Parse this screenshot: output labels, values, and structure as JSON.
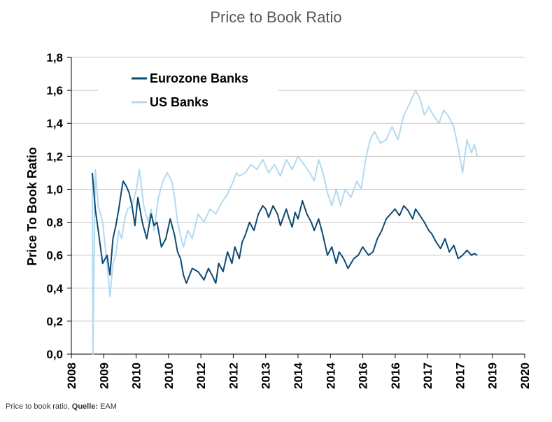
{
  "title": "Price to Book Ratio",
  "caption": {
    "text": "Price to book ratio, ",
    "source_label": "Quelle:",
    "source": " EAM"
  },
  "colors": {
    "eurozone": "#0d4a73",
    "us": "#b3daf0",
    "grid": "#c8c8c8"
  },
  "chart_data": {
    "type": "line",
    "title": "Price to Book Ratio",
    "xlabel": "",
    "ylabel": "Price To Book Ratio",
    "ylim": [
      0,
      1.8
    ],
    "yticks": [
      "0,0",
      "0,2",
      "0,4",
      "0,6",
      "0,8",
      "1,0",
      "1,2",
      "1,4",
      "1,6",
      "1,8"
    ],
    "xticks": [
      "2008",
      "2009",
      "2010",
      "2010",
      "2012",
      "2012",
      "2013",
      "2014",
      "2014",
      "2016",
      "2016",
      "2017",
      "2017",
      "2019",
      "2020"
    ],
    "grid": "horizontal",
    "legend": "top-left",
    "series": [
      {
        "name": "Eurozone Banks",
        "color": "#0d4a73",
        "x": [
          0.0,
          0.1,
          0.2,
          0.35,
          0.5,
          0.6,
          0.7,
          0.8,
          0.9,
          1.0,
          1.05,
          1.15,
          1.25,
          1.35,
          1.45,
          1.55,
          1.7,
          1.85,
          2.0,
          2.1,
          2.2,
          2.35,
          2.5,
          2.65,
          2.8,
          2.9,
          3.0,
          3.1,
          3.2,
          3.4,
          3.6,
          3.8,
          3.95,
          4.1,
          4.2,
          4.3,
          4.45,
          4.6,
          4.75,
          4.85,
          5.0,
          5.1,
          5.2,
          5.35,
          5.5,
          5.65,
          5.8,
          5.9,
          6.0,
          6.15,
          6.3,
          6.4,
          6.5,
          6.6,
          6.7,
          6.8,
          6.9,
          7.0,
          7.15,
          7.3,
          7.45,
          7.55,
          7.7,
          7.85,
          8.0,
          8.15,
          8.3,
          8.4,
          8.55,
          8.7,
          8.9,
          9.05,
          9.2,
          9.4,
          9.55,
          9.7,
          9.85,
          10.0,
          10.15,
          10.3,
          10.45,
          10.6,
          10.75,
          10.9,
          11.0,
          11.15,
          11.3,
          11.45,
          11.55,
          11.7,
          11.85,
          12.0,
          12.15,
          12.3,
          12.45,
          12.6,
          12.75,
          12.9,
          13.0,
          13.1
        ],
        "y": [
          1.1,
          0.88,
          0.75,
          0.55,
          0.6,
          0.48,
          0.7,
          0.78,
          0.88,
          1.0,
          1.05,
          1.02,
          0.98,
          0.9,
          0.78,
          0.95,
          0.8,
          0.7,
          0.85,
          0.78,
          0.8,
          0.65,
          0.7,
          0.82,
          0.72,
          0.62,
          0.58,
          0.48,
          0.43,
          0.52,
          0.5,
          0.45,
          0.52,
          0.47,
          0.43,
          0.55,
          0.5,
          0.62,
          0.55,
          0.65,
          0.58,
          0.68,
          0.72,
          0.8,
          0.75,
          0.85,
          0.9,
          0.88,
          0.83,
          0.9,
          0.85,
          0.78,
          0.83,
          0.88,
          0.82,
          0.77,
          0.86,
          0.82,
          0.93,
          0.85,
          0.8,
          0.75,
          0.82,
          0.72,
          0.6,
          0.65,
          0.55,
          0.62,
          0.58,
          0.52,
          0.58,
          0.6,
          0.65,
          0.6,
          0.62,
          0.7,
          0.75,
          0.82,
          0.85,
          0.88,
          0.84,
          0.9,
          0.87,
          0.82,
          0.88,
          0.84,
          0.8,
          0.75,
          0.73,
          0.68,
          0.64,
          0.7,
          0.62,
          0.66,
          0.58,
          0.6,
          0.63,
          0.6,
          0.61,
          0.6
        ]
      },
      {
        "name": "US Banks",
        "color": "#b3daf0",
        "x": [
          0.0,
          0.02,
          0.1,
          0.2,
          0.35,
          0.5,
          0.6,
          0.7,
          0.8,
          0.9,
          1.0,
          1.1,
          1.2,
          1.35,
          1.5,
          1.6,
          1.75,
          1.9,
          2.0,
          2.1,
          2.25,
          2.4,
          2.55,
          2.7,
          2.8,
          2.9,
          3.0,
          3.1,
          3.25,
          3.4,
          3.6,
          3.8,
          4.0,
          4.2,
          4.4,
          4.6,
          4.8,
          4.9,
          5.0,
          5.2,
          5.4,
          5.6,
          5.8,
          6.0,
          6.2,
          6.4,
          6.6,
          6.8,
          7.0,
          7.2,
          7.4,
          7.55,
          7.7,
          7.85,
          8.0,
          8.15,
          8.3,
          8.45,
          8.6,
          8.8,
          9.0,
          9.15,
          9.3,
          9.45,
          9.6,
          9.8,
          10.0,
          10.2,
          10.4,
          10.6,
          10.8,
          11.0,
          11.15,
          11.3,
          11.45,
          11.6,
          11.8,
          11.95,
          12.1,
          12.3,
          12.45,
          12.6,
          12.75,
          12.9,
          13.0,
          13.1
        ],
        "y": [
          1.1,
          0.0,
          1.12,
          0.9,
          0.8,
          0.55,
          0.35,
          0.55,
          0.6,
          0.75,
          0.7,
          0.82,
          0.88,
          0.9,
          1.0,
          1.12,
          0.9,
          0.8,
          0.88,
          0.75,
          0.95,
          1.05,
          1.1,
          1.05,
          0.95,
          0.8,
          0.72,
          0.65,
          0.75,
          0.7,
          0.85,
          0.8,
          0.88,
          0.85,
          0.92,
          0.97,
          1.05,
          1.1,
          1.08,
          1.1,
          1.15,
          1.12,
          1.18,
          1.1,
          1.15,
          1.08,
          1.18,
          1.12,
          1.2,
          1.15,
          1.1,
          1.05,
          1.18,
          1.1,
          0.98,
          0.9,
          1.0,
          0.9,
          1.0,
          0.95,
          1.05,
          1.0,
          1.18,
          1.3,
          1.35,
          1.28,
          1.3,
          1.38,
          1.3,
          1.45,
          1.52,
          1.6,
          1.55,
          1.45,
          1.5,
          1.45,
          1.4,
          1.48,
          1.45,
          1.38,
          1.25,
          1.1,
          1.3,
          1.22,
          1.27,
          1.2
        ]
      }
    ]
  }
}
